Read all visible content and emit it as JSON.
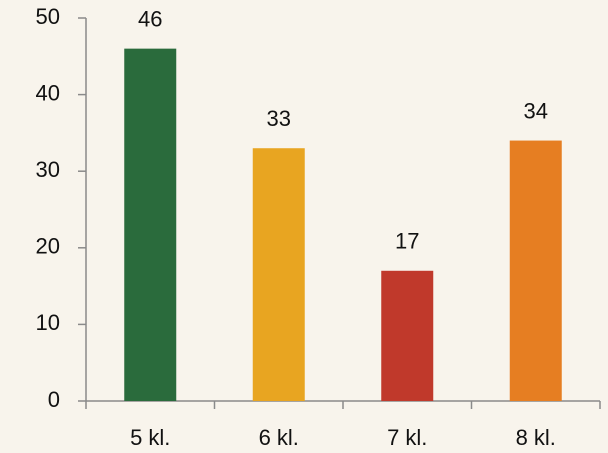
{
  "chart_data": {
    "type": "bar",
    "categories": [
      "5 kl.",
      "6 kl.",
      "7 kl.",
      "8 kl."
    ],
    "values": [
      46,
      33,
      17,
      34
    ],
    "colors": [
      "#2a6b3c",
      "#e8a521",
      "#c0392b",
      "#e67e22"
    ],
    "ylim": [
      0,
      50
    ],
    "yticks": [
      0,
      10,
      20,
      30,
      40,
      50
    ],
    "grid": false
  }
}
